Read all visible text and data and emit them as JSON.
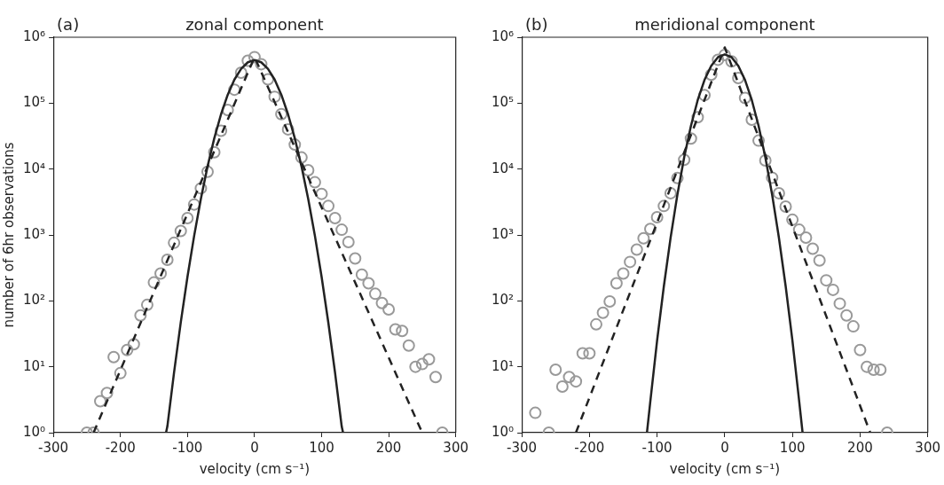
{
  "chart_data": [
    {
      "type": "scatter",
      "title": "zonal component",
      "annotations": [
        "(a)"
      ],
      "xlabel": "velocity (cm s⁻¹)",
      "ylabel": "number of 6hr observations",
      "log": "y",
      "grid": false,
      "legend": false,
      "xlim": [
        -300,
        300
      ],
      "xticks": [
        -300,
        -200,
        -100,
        0,
        100,
        200,
        300
      ],
      "ylim": [
        1,
        1000000
      ],
      "yticks": [
        {
          "value": 1,
          "label": "10⁰"
        },
        {
          "value": 10,
          "label": "10¹"
        },
        {
          "value": 100,
          "label": "10²"
        },
        {
          "value": 1000,
          "label": "10³"
        },
        {
          "value": 10000,
          "label": "10⁴"
        },
        {
          "value": 100000,
          "label": "10⁵"
        },
        {
          "value": 1000000,
          "label": "10⁶"
        }
      ],
      "series": [
        {
          "marker": "circle",
          "color": "#999999",
          "x": [
            -250,
            -240,
            -230,
            -220,
            -210,
            -200,
            -190,
            -180,
            -170,
            -160,
            -150,
            -140,
            -130,
            -120,
            -110,
            -100,
            -90,
            -80,
            -70,
            -60,
            -50,
            -40,
            -30,
            -20,
            -10,
            0,
            10,
            20,
            30,
            40,
            50,
            60,
            70,
            80,
            90,
            100,
            110,
            120,
            130,
            140,
            150,
            160,
            170,
            180,
            190,
            200,
            210,
            220,
            230,
            240,
            250,
            260,
            270,
            280
          ],
          "values": [
            1,
            1,
            3,
            4,
            14,
            8,
            18,
            22,
            60,
            87,
            190,
            260,
            420,
            760,
            1150,
            1800,
            2900,
            5100,
            9100,
            18000,
            38000,
            79000,
            160000,
            290000,
            440000,
            500000,
            390000,
            230000,
            125000,
            68000,
            40000,
            23500,
            15000,
            9600,
            6300,
            4200,
            2750,
            1800,
            1200,
            780,
            440,
            250,
            185,
            128,
            93,
            74,
            37,
            35,
            21,
            10,
            11,
            13,
            7,
            1
          ]
        },
        {
          "type": "line",
          "marker": "none",
          "line_style": "solid",
          "color": "#222222",
          "x": [
            -132,
            -130,
            -120,
            -110,
            -100,
            -90,
            -80,
            -70,
            -60,
            -50,
            -40,
            -30,
            -20,
            -10,
            0,
            10,
            20,
            30,
            40,
            50,
            60,
            70,
            80,
            90,
            100,
            110,
            120,
            130,
            132
          ],
          "values": [
            1,
            1.24,
            8.2,
            47,
            231,
            974,
            3530,
            11000,
            29400,
            67600,
            134000,
            228000,
            332000,
            417000,
            450000,
            417000,
            332000,
            228000,
            134000,
            67600,
            29400,
            11000,
            3530,
            974,
            231,
            47,
            8.2,
            1.24,
            1
          ]
        },
        {
          "type": "line",
          "marker": "none",
          "line_style": "dashed",
          "color": "#222222",
          "x": [
            -240,
            0,
            250
          ],
          "values": [
            1,
            500000,
            1
          ]
        }
      ]
    },
    {
      "type": "scatter",
      "title": "meridional component",
      "annotations": [
        "(b)"
      ],
      "xlabel": "velocity (cm s⁻¹)",
      "log": "y",
      "grid": false,
      "legend": false,
      "xlim": [
        -300,
        300
      ],
      "xticks": [
        -300,
        -200,
        -100,
        0,
        100,
        200,
        300
      ],
      "ylim": [
        1,
        1000000
      ],
      "yticks": [
        {
          "value": 1,
          "label": "10⁰"
        },
        {
          "value": 10,
          "label": "10¹"
        },
        {
          "value": 100,
          "label": "10²"
        },
        {
          "value": 1000,
          "label": "10³"
        },
        {
          "value": 10000,
          "label": "10⁴"
        },
        {
          "value": 100000,
          "label": "10⁵"
        },
        {
          "value": 1000000,
          "label": "10⁶"
        }
      ],
      "series": [
        {
          "marker": "circle",
          "color": "#999999",
          "x": [
            -280,
            -260,
            -250,
            -240,
            -230,
            -220,
            -210,
            -200,
            -190,
            -180,
            -170,
            -160,
            -150,
            -140,
            -130,
            -120,
            -110,
            -100,
            -90,
            -80,
            -70,
            -60,
            -50,
            -40,
            -30,
            -20,
            -10,
            0,
            10,
            20,
            30,
            40,
            50,
            60,
            70,
            80,
            90,
            100,
            110,
            120,
            130,
            140,
            150,
            160,
            170,
            180,
            190,
            200,
            210,
            220,
            230,
            240
          ],
          "values": [
            2,
            1,
            9,
            5,
            7,
            6,
            16,
            16,
            44,
            66,
            98,
            185,
            260,
            390,
            600,
            890,
            1230,
            1860,
            2750,
            4300,
            7300,
            13800,
            29000,
            61000,
            132000,
            270000,
            455000,
            540000,
            430000,
            240000,
            120000,
            56000,
            27000,
            13500,
            7400,
            4300,
            2700,
            1700,
            1200,
            910,
            620,
            410,
            205,
            147,
            91,
            60,
            41,
            18,
            10,
            9,
            9,
            1
          ]
        },
        {
          "type": "line",
          "marker": "none",
          "line_style": "solid",
          "color": "#222222",
          "x": [
            -115,
            -110,
            -100,
            -90,
            -80,
            -70,
            -60,
            -50,
            -40,
            -30,
            -20,
            -10,
            0,
            10,
            20,
            30,
            40,
            50,
            60,
            70,
            80,
            90,
            100,
            110,
            115
          ],
          "values": [
            1,
            3,
            25,
            167,
            913,
            4100,
            15000,
            45100,
            111000,
            224000,
            369000,
            498000,
            550000,
            498000,
            369000,
            224000,
            111000,
            45100,
            15000,
            4100,
            913,
            167,
            25,
            3,
            1
          ]
        },
        {
          "type": "line",
          "marker": "none",
          "line_style": "dashed",
          "color": "#222222",
          "x": [
            -220,
            0,
            215
          ],
          "values": [
            1,
            700000,
            1
          ]
        }
      ]
    }
  ]
}
